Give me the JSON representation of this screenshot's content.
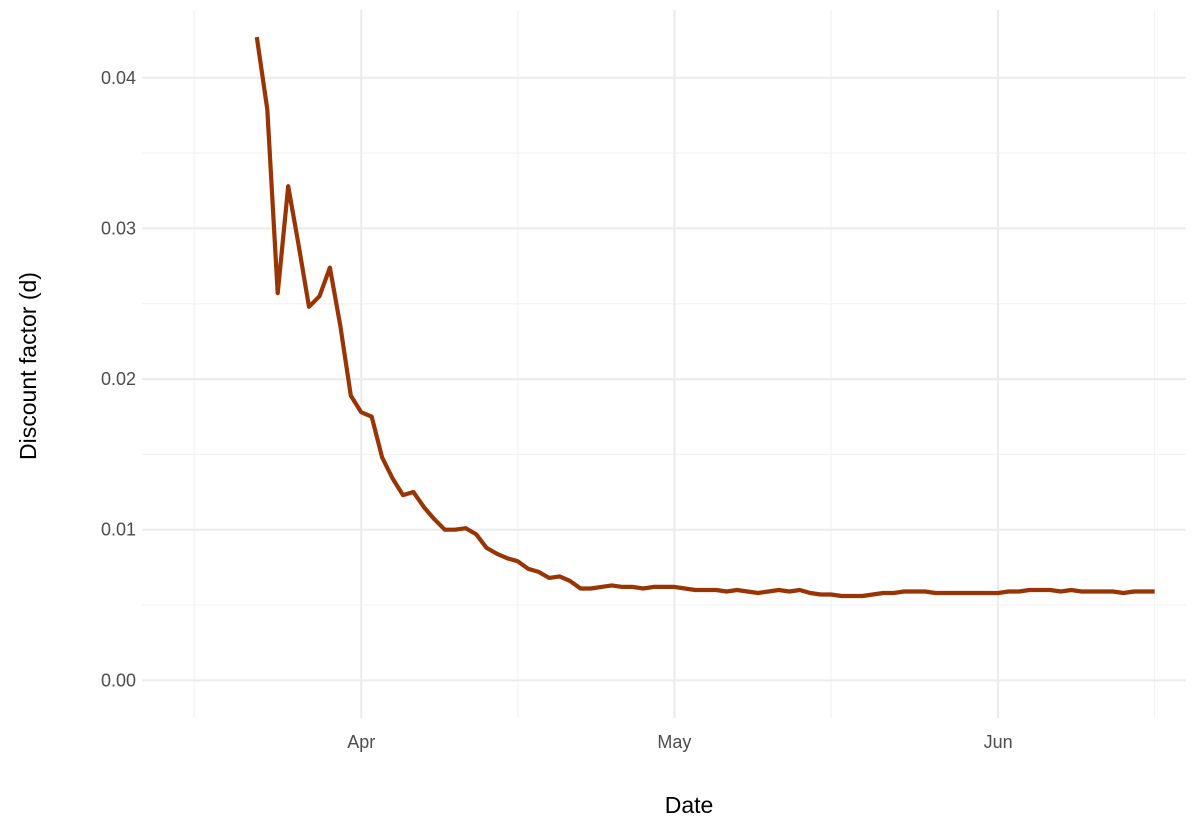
{
  "chart_data": {
    "type": "line",
    "xlabel": "Date",
    "ylabel": "Discount factor (d)",
    "x_axis": {
      "scale": "date",
      "range": [
        "2020-03-11",
        "2020-06-19"
      ],
      "ticks": [
        {
          "date": "2020-04-01",
          "label": "Apr"
        },
        {
          "date": "2020-05-01",
          "label": "May"
        },
        {
          "date": "2020-06-01",
          "label": "Jun"
        }
      ],
      "minor_ticks": [
        "2020-03-16",
        "2020-04-16",
        "2020-05-16",
        "2020-06-16"
      ]
    },
    "y_axis": {
      "range": [
        -0.0025,
        0.0445
      ],
      "ticks": [
        {
          "value": 0.0,
          "label": "0.00"
        },
        {
          "value": 0.01,
          "label": "0.01"
        },
        {
          "value": 0.02,
          "label": "0.02"
        },
        {
          "value": 0.03,
          "label": "0.03"
        },
        {
          "value": 0.04,
          "label": "0.04"
        }
      ],
      "minor_ticks": [
        0.005,
        0.015,
        0.025,
        0.035
      ]
    },
    "grid": true,
    "legend": "none",
    "series": [
      {
        "color": "#993404",
        "x": [
          "2020-03-22",
          "2020-03-23",
          "2020-03-24",
          "2020-03-25",
          "2020-03-26",
          "2020-03-27",
          "2020-03-28",
          "2020-03-29",
          "2020-03-30",
          "2020-03-31",
          "2020-04-01",
          "2020-04-02",
          "2020-04-03",
          "2020-04-04",
          "2020-04-05",
          "2020-04-06",
          "2020-04-07",
          "2020-04-08",
          "2020-04-09",
          "2020-04-10",
          "2020-04-11",
          "2020-04-12",
          "2020-04-13",
          "2020-04-14",
          "2020-04-15",
          "2020-04-16",
          "2020-04-17",
          "2020-04-18",
          "2020-04-19",
          "2020-04-20",
          "2020-04-21",
          "2020-04-22",
          "2020-04-23",
          "2020-04-24",
          "2020-04-25",
          "2020-04-26",
          "2020-04-27",
          "2020-04-28",
          "2020-04-29",
          "2020-04-30",
          "2020-05-01",
          "2020-05-02",
          "2020-05-03",
          "2020-05-04",
          "2020-05-05",
          "2020-05-06",
          "2020-05-07",
          "2020-05-08",
          "2020-05-09",
          "2020-05-10",
          "2020-05-11",
          "2020-05-12",
          "2020-05-13",
          "2020-05-14",
          "2020-05-15",
          "2020-05-16",
          "2020-05-17",
          "2020-05-18",
          "2020-05-19",
          "2020-05-20",
          "2020-05-21",
          "2020-05-22",
          "2020-05-23",
          "2020-05-24",
          "2020-05-25",
          "2020-05-26",
          "2020-05-27",
          "2020-05-28",
          "2020-05-29",
          "2020-05-30",
          "2020-05-31",
          "2020-06-01",
          "2020-06-02",
          "2020-06-03",
          "2020-06-04",
          "2020-06-05",
          "2020-06-06",
          "2020-06-07",
          "2020-06-08",
          "2020-06-09",
          "2020-06-10",
          "2020-06-11",
          "2020-06-12",
          "2020-06-13",
          "2020-06-14",
          "2020-06-15",
          "2020-06-16"
        ],
        "y": [
          0.0427,
          0.0379,
          0.0257,
          0.0328,
          0.0289,
          0.0248,
          0.0255,
          0.0274,
          0.0235,
          0.0189,
          0.0178,
          0.0175,
          0.0148,
          0.0134,
          0.0123,
          0.0125,
          0.0115,
          0.0107,
          0.01,
          0.01,
          0.0101,
          0.0097,
          0.0088,
          0.0084,
          0.0081,
          0.0079,
          0.0074,
          0.0072,
          0.0068,
          0.0069,
          0.0066,
          0.0061,
          0.0061,
          0.0062,
          0.0063,
          0.0062,
          0.0062,
          0.0061,
          0.0062,
          0.0062,
          0.0062,
          0.0061,
          0.006,
          0.006,
          0.006,
          0.0059,
          0.006,
          0.0059,
          0.0058,
          0.0059,
          0.006,
          0.0059,
          0.006,
          0.0058,
          0.0057,
          0.0057,
          0.0056,
          0.0056,
          0.0056,
          0.0057,
          0.0058,
          0.0058,
          0.0059,
          0.0059,
          0.0059,
          0.0058,
          0.0058,
          0.0058,
          0.0058,
          0.0058,
          0.0058,
          0.0058,
          0.0059,
          0.0059,
          0.006,
          0.006,
          0.006,
          0.0059,
          0.006,
          0.0059,
          0.0059,
          0.0059,
          0.0059,
          0.0058,
          0.0059,
          0.0059,
          0.0059
        ]
      }
    ]
  }
}
